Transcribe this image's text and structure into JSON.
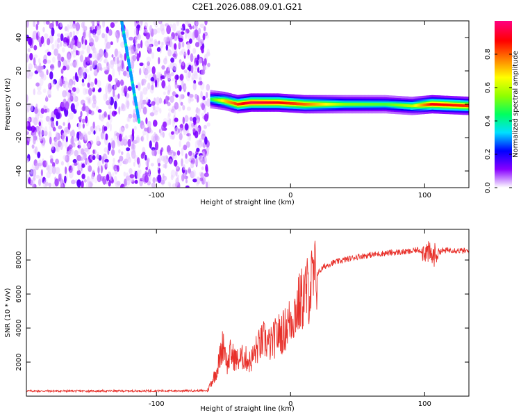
{
  "title": "C2E1.2026.088.09.01.G21",
  "chart_data": [
    {
      "type": "heatmap",
      "name": "spectrogram",
      "xlabel": "Height of straight line (km)",
      "ylabel": "Frequency (Hz)",
      "xlim": [
        -197,
        133
      ],
      "ylim": [
        -50,
        50
      ],
      "xticks": [
        -100,
        0,
        100
      ],
      "xtick_labels": [
        "-100",
        "0",
        "100"
      ],
      "yticks": [
        -40,
        -20,
        0,
        20,
        40
      ],
      "ytick_labels": [
        "-40",
        "-20",
        "0",
        "20",
        "40"
      ],
      "colorbar": {
        "label": "Normalized spectral amplitude",
        "range": [
          0,
          1
        ],
        "ticks": [
          0,
          0.2,
          0.4,
          0.6,
          0.8
        ],
        "tick_labels": [
          "0.0",
          "0.2",
          "0.4",
          "0.6",
          "0.8"
        ],
        "colors": [
          "#ffffff",
          "#8800ff",
          "#0000ff",
          "#00e0ff",
          "#00ff60",
          "#90ff00",
          "#ffff00",
          "#ff8000",
          "#ff0000",
          "#ff0080"
        ]
      },
      "noise_region": {
        "x_range": [
          -197,
          -61
        ],
        "frequency_range": [
          -50,
          50
        ],
        "amplitude_range": [
          0.02,
          0.15
        ]
      },
      "tone_track": [
        {
          "x": -60,
          "freq": 3,
          "amp": 0.45
        },
        {
          "x": -50,
          "freq": 2,
          "amp": 0.7
        },
        {
          "x": -40,
          "freq": 0,
          "amp": 0.85
        },
        {
          "x": -30,
          "freq": 1,
          "amp": 0.95
        },
        {
          "x": -10,
          "freq": 1,
          "amp": 0.9
        },
        {
          "x": 10,
          "freq": 0,
          "amp": 0.8
        },
        {
          "x": 40,
          "freq": 0,
          "amp": 0.55
        },
        {
          "x": 70,
          "freq": 0,
          "amp": 0.5
        },
        {
          "x": 90,
          "freq": -1,
          "amp": 0.6
        },
        {
          "x": 105,
          "freq": 0,
          "amp": 0.9
        },
        {
          "x": 133,
          "freq": -1,
          "amp": 0.85
        }
      ],
      "streaks": [
        {
          "x_start": -126,
          "freq_start": 50,
          "x_end": -113,
          "freq_end": -10,
          "amp": 0.3
        }
      ]
    },
    {
      "type": "line",
      "name": "snr",
      "xlabel": "Height of straight line (km)",
      "ylabel": "SNR (10 * v/v)",
      "xlim": [
        -197,
        133
      ],
      "ylim": [
        0,
        9800
      ],
      "xticks": [
        -100,
        0,
        100
      ],
      "xtick_labels": [
        "-100",
        "0",
        "100"
      ],
      "yticks": [
        2000,
        4000,
        6000,
        8000
      ],
      "ytick_labels": [
        "2000",
        "4000",
        "6000",
        "8000"
      ],
      "color": "#e8302a",
      "series": [
        {
          "name": "SNR",
          "x": [
            -197,
            -150,
            -100,
            -62,
            -55,
            -50,
            -47,
            -45,
            -40,
            -35,
            -30,
            -25,
            -20,
            -15,
            -10,
            -5,
            0,
            5,
            10,
            15,
            20,
            25,
            30,
            40,
            50,
            60,
            70,
            80,
            90,
            95,
            100,
            103,
            106,
            110,
            120,
            133
          ],
          "y": [
            300,
            300,
            310,
            320,
            1500,
            3200,
            1800,
            2500,
            2100,
            2300,
            2000,
            2800,
            3300,
            3000,
            3600,
            3800,
            4500,
            5200,
            5900,
            6500,
            7200,
            7600,
            7800,
            8000,
            8200,
            8300,
            8400,
            8450,
            8500,
            8600,
            8550,
            8400,
            8200,
            8500,
            8600,
            8500
          ]
        }
      ]
    }
  ]
}
